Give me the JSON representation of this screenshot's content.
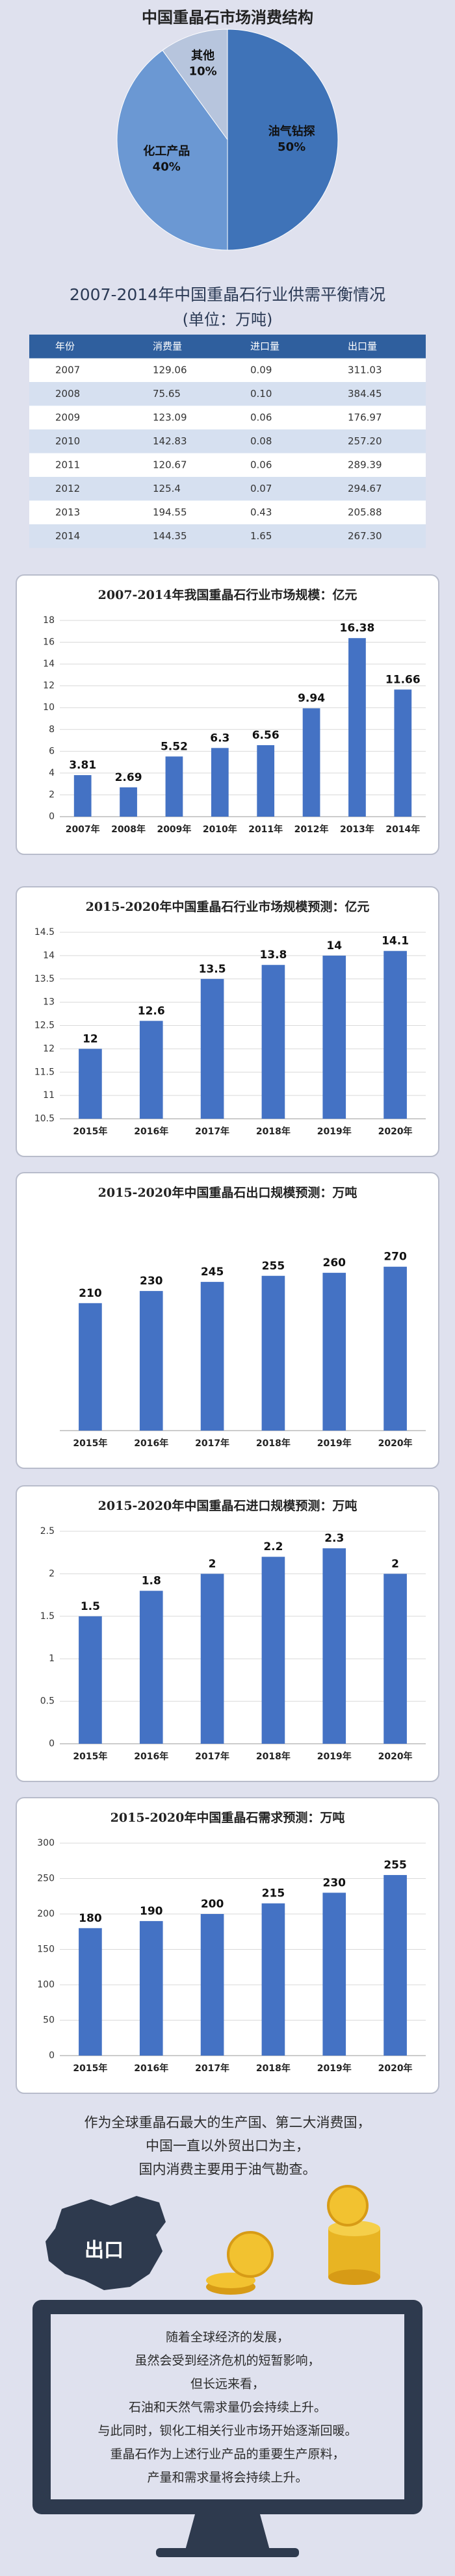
{
  "chart_data": [
    {
      "type": "pie",
      "title": "中国重晶石市场消费结构",
      "categories": [
        "油气钻探",
        "化工产品",
        "其他"
      ],
      "values": [
        50,
        40,
        10
      ],
      "value_labels": [
        "50%",
        "40%",
        "10%"
      ],
      "colors": [
        "#3f73b8",
        "#6b98d3",
        "#b7c5dd"
      ]
    },
    {
      "type": "bar",
      "title": "2007-2014年我国重晶石行业市场规模：亿元",
      "categories": [
        "2007年",
        "2008年",
        "2009年",
        "2010年",
        "2011年",
        "2012年",
        "2013年",
        "2014年"
      ],
      "values": [
        3.81,
        2.69,
        5.52,
        6.3,
        6.56,
        9.94,
        16.38,
        11.66
      ],
      "color": "#4472c4",
      "ylim": [
        0,
        18
      ],
      "yticks": [
        0,
        2,
        4,
        6,
        8,
        10,
        12,
        14,
        16,
        18
      ],
      "grid": true
    },
    {
      "type": "bar",
      "title": "2015-2020年中国重晶石行业市场规模预测：亿元",
      "categories": [
        "2015年",
        "2016年",
        "2017年",
        "2018年",
        "2019年",
        "2020年"
      ],
      "values": [
        12,
        12.6,
        13.5,
        13.8,
        14,
        14.1
      ],
      "color": "#4472c4",
      "ylim": [
        10.5,
        14.5
      ],
      "yticks": [
        10.5,
        11,
        11.5,
        12,
        12.5,
        13,
        13.5,
        14,
        14.5
      ],
      "grid": true
    },
    {
      "type": "bar",
      "title": "2015-2020年中国重晶石出口规模预测：万吨",
      "categories": [
        "2015年",
        "2016年",
        "2017年",
        "2018年",
        "2019年",
        "2020年"
      ],
      "values": [
        210,
        230,
        245,
        255,
        260,
        270
      ],
      "color": "#4472c4",
      "ylim": [
        0,
        350
      ],
      "grid": false
    },
    {
      "type": "bar",
      "title": "2015-2020年中国重晶石进口规模预测：万吨",
      "categories": [
        "2015年",
        "2016年",
        "2017年",
        "2018年",
        "2019年",
        "2020年"
      ],
      "values": [
        1.5,
        1.8,
        2,
        2.2,
        2.3,
        2
      ],
      "color": "#4472c4",
      "ylim": [
        0,
        2.5
      ],
      "yticks": [
        0,
        0.5,
        1,
        1.5,
        2,
        2.5
      ],
      "grid": true
    },
    {
      "type": "bar",
      "title": "2015-2020年中国重晶石需求预测：万吨",
      "categories": [
        "2015年",
        "2016年",
        "2017年",
        "2018年",
        "2019年",
        "2020年"
      ],
      "values": [
        180,
        190,
        200,
        215,
        230,
        255
      ],
      "color": "#4472c4",
      "ylim": [
        0,
        300
      ],
      "yticks": [
        0,
        50,
        100,
        150,
        200,
        250,
        300
      ],
      "grid": true
    }
  ],
  "table": {
    "title": "2007-2014年中国重晶石行业供需平衡情况",
    "subtitle": "(单位：万吨)",
    "header": [
      "年份",
      "消费量",
      "进口量",
      "出口量"
    ],
    "rows": [
      [
        "2007",
        "129.06",
        "0.09",
        "311.03"
      ],
      [
        "2008",
        "75.65",
        "0.10",
        "384.45"
      ],
      [
        "2009",
        "123.09",
        "0.06",
        "176.97"
      ],
      [
        "2010",
        "142.83",
        "0.08",
        "257.20"
      ],
      [
        "2011",
        "120.67",
        "0.06",
        "289.39"
      ],
      [
        "2012",
        "125.4",
        "0.07",
        "294.67"
      ],
      [
        "2013",
        "194.55",
        "0.43",
        "205.88"
      ],
      [
        "2014",
        "144.35",
        "1.65",
        "267.30"
      ]
    ]
  },
  "text": {
    "intro": [
      "作为全球重晶石最大的生产国、第二大消费国，",
      "中国一直以外贸出口为主，",
      "国内消费主要用于油气勘查。"
    ],
    "map_label": "出口",
    "screen": [
      "随着全球经济的发展，",
      "虽然会受到经济危机的短暂影响，",
      "但长远来看，",
      "石油和天然气需求量仍会持续上升。",
      "与此同时，钡化工相关行业市场开始逐渐回暖。",
      "重晶石作为上述行业产品的重要生产原料，",
      "产量和需求量将会持续上升。"
    ]
  }
}
